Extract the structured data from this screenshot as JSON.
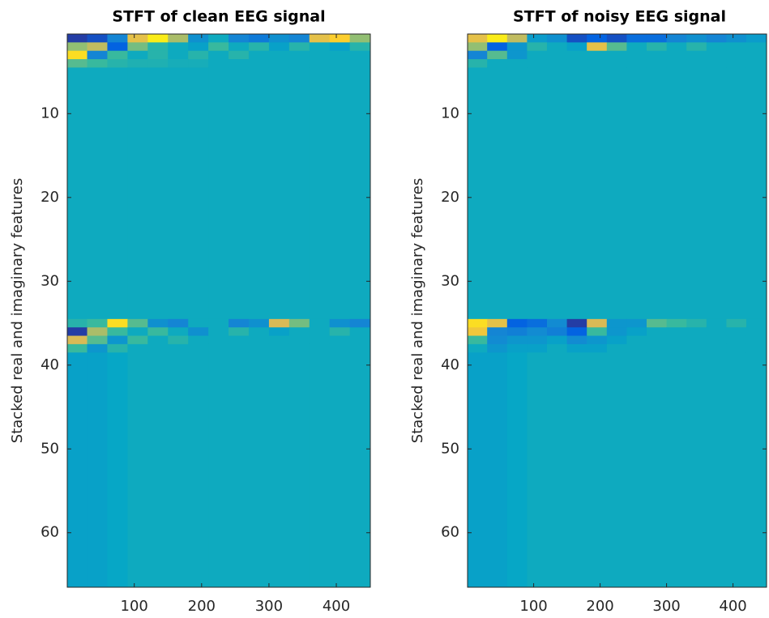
{
  "chart_data": [
    {
      "type": "heatmap",
      "title": "STFT of clean EEG signal",
      "ylabel": "Stacked real and imaginary features",
      "colormap": "parula",
      "clim": [
        -1.2,
        1.2
      ],
      "y_reversed": true,
      "xlim": [
        0.5,
        450.5
      ],
      "ylim": [
        0.5,
        66.5
      ],
      "xticks": [
        100,
        200,
        300,
        400
      ],
      "yticks": [
        10,
        20,
        30,
        40,
        50,
        60
      ],
      "x_edges": [
        0.5,
        30,
        60,
        90,
        120,
        150,
        180,
        210,
        240,
        270,
        300,
        330,
        360,
        390,
        420,
        450.5
      ],
      "y_edges": [
        0.5,
        1.5,
        2.5,
        3.5,
        4.5,
        34.5,
        35.5,
        36.5,
        37.5,
        38.5,
        66.5
      ],
      "z": [
        [
          -1.1,
          -1.0,
          -0.6,
          0.7,
          1.1,
          0.4,
          -0.5,
          -0.25,
          -0.6,
          -0.7,
          -0.5,
          -0.6,
          0.7,
          0.9,
          0.3
        ],
        [
          0.3,
          0.5,
          -0.9,
          0.2,
          -0.1,
          -0.25,
          -0.35,
          0,
          -0.25,
          -0.1,
          -0.35,
          -0.1,
          -0.25,
          -0.35,
          -0.1
        ],
        [
          1.0,
          -0.6,
          0,
          -0.25,
          -0.1,
          -0.25,
          -0.1,
          -0.25,
          -0.1,
          -0.25,
          -0.25,
          -0.25,
          -0.25,
          -0.25,
          -0.25
        ],
        [
          0.1,
          0,
          -0.1,
          -0.15,
          -0.15,
          -0.2,
          -0.2,
          -0.25,
          -0.25,
          -0.25,
          -0.25,
          -0.25,
          -0.25,
          -0.25,
          -0.25
        ],
        [
          -0.25,
          -0.25,
          -0.25,
          -0.25,
          -0.25,
          -0.25,
          -0.25,
          -0.25,
          -0.25,
          -0.25,
          -0.25,
          -0.25,
          -0.25,
          -0.25,
          -0.25
        ],
        [
          -0.1,
          0,
          1.0,
          0.1,
          -0.5,
          -0.6,
          -0.25,
          -0.25,
          -0.6,
          -0.5,
          0.6,
          0.2,
          -0.25,
          -0.5,
          -0.6
        ],
        [
          -1.1,
          0.4,
          0,
          -0.25,
          0,
          -0.25,
          -0.5,
          -0.25,
          -0.1,
          -0.25,
          -0.35,
          -0.25,
          -0.25,
          -0.1,
          -0.25
        ],
        [
          0.6,
          0.1,
          -0.45,
          0,
          -0.25,
          -0.1,
          -0.25,
          -0.25,
          -0.25,
          -0.25,
          -0.25,
          -0.25,
          -0.25,
          -0.25,
          -0.25
        ],
        [
          0,
          -0.45,
          -0.1,
          -0.25,
          -0.25,
          -0.25,
          -0.25,
          -0.25,
          -0.25,
          -0.25,
          -0.25,
          -0.25,
          -0.25,
          -0.25,
          -0.25
        ],
        [
          -0.35,
          -0.35,
          -0.3,
          -0.25,
          -0.25,
          -0.25,
          -0.25,
          -0.25,
          -0.25,
          -0.25,
          -0.25,
          -0.25,
          -0.25,
          -0.25,
          -0.25
        ]
      ]
    },
    {
      "type": "heatmap",
      "title": "STFT of noisy EEG signal",
      "ylabel": "Stacked real and imaginary features",
      "colormap": "parula",
      "clim": [
        -1.2,
        1.2
      ],
      "y_reversed": true,
      "xlim": [
        0.5,
        450.5
      ],
      "ylim": [
        0.5,
        66.5
      ],
      "xticks": [
        100,
        200,
        300,
        400
      ],
      "yticks": [
        10,
        20,
        30,
        40,
        50,
        60
      ],
      "x_edges": [
        0.5,
        30,
        60,
        90,
        120,
        150,
        180,
        210,
        240,
        270,
        300,
        330,
        360,
        390,
        420,
        450.5
      ],
      "y_edges": [
        0.5,
        1.5,
        2.5,
        3.5,
        4.5,
        34.5,
        35.5,
        36.5,
        37.5,
        38.5,
        66.5
      ],
      "z": [
        [
          0.7,
          1.1,
          0.5,
          -0.4,
          -0.5,
          -1.0,
          -0.9,
          -1.0,
          -0.8,
          -0.8,
          -0.6,
          -0.5,
          -0.6,
          -0.5,
          -0.4
        ],
        [
          0.3,
          -0.9,
          -0.45,
          -0.1,
          -0.25,
          -0.35,
          0.7,
          0.1,
          -0.25,
          -0.1,
          -0.25,
          -0.1,
          -0.25,
          -0.25,
          -0.25
        ],
        [
          -0.6,
          0.1,
          -0.45,
          -0.25,
          -0.25,
          -0.25,
          -0.25,
          -0.25,
          -0.25,
          -0.25,
          -0.25,
          -0.25,
          -0.25,
          -0.25,
          -0.25
        ],
        [
          -0.1,
          -0.25,
          -0.25,
          -0.25,
          -0.25,
          -0.25,
          -0.25,
          -0.25,
          -0.25,
          -0.25,
          -0.25,
          -0.25,
          -0.25,
          -0.25,
          -0.25
        ],
        [
          -0.25,
          -0.25,
          -0.25,
          -0.25,
          -0.25,
          -0.25,
          -0.25,
          -0.25,
          -0.25,
          -0.25,
          -0.25,
          -0.25,
          -0.25,
          -0.25,
          -0.25
        ],
        [
          1.0,
          0.7,
          -0.9,
          -0.8,
          -0.55,
          -1.1,
          0.6,
          -0.45,
          -0.45,
          0.1,
          0,
          -0.1,
          -0.25,
          -0.1,
          -0.25
        ],
        [
          0.8,
          -0.6,
          -0.65,
          -0.55,
          -0.65,
          -0.9,
          0,
          -0.45,
          -0.35,
          -0.25,
          -0.25,
          -0.25,
          -0.25,
          -0.25,
          -0.25
        ],
        [
          0,
          -0.55,
          -0.45,
          -0.45,
          -0.35,
          -0.55,
          -0.45,
          -0.35,
          -0.25,
          -0.25,
          -0.25,
          -0.25,
          -0.25,
          -0.25,
          -0.25
        ],
        [
          -0.25,
          -0.45,
          -0.35,
          -0.35,
          -0.25,
          -0.35,
          -0.35,
          -0.25,
          -0.25,
          -0.25,
          -0.25,
          -0.25,
          -0.25,
          -0.25,
          -0.25
        ],
        [
          -0.35,
          -0.35,
          -0.3,
          -0.25,
          -0.25,
          -0.25,
          -0.25,
          -0.25,
          -0.25,
          -0.25,
          -0.25,
          -0.25,
          -0.25,
          -0.25,
          -0.25
        ]
      ]
    }
  ]
}
